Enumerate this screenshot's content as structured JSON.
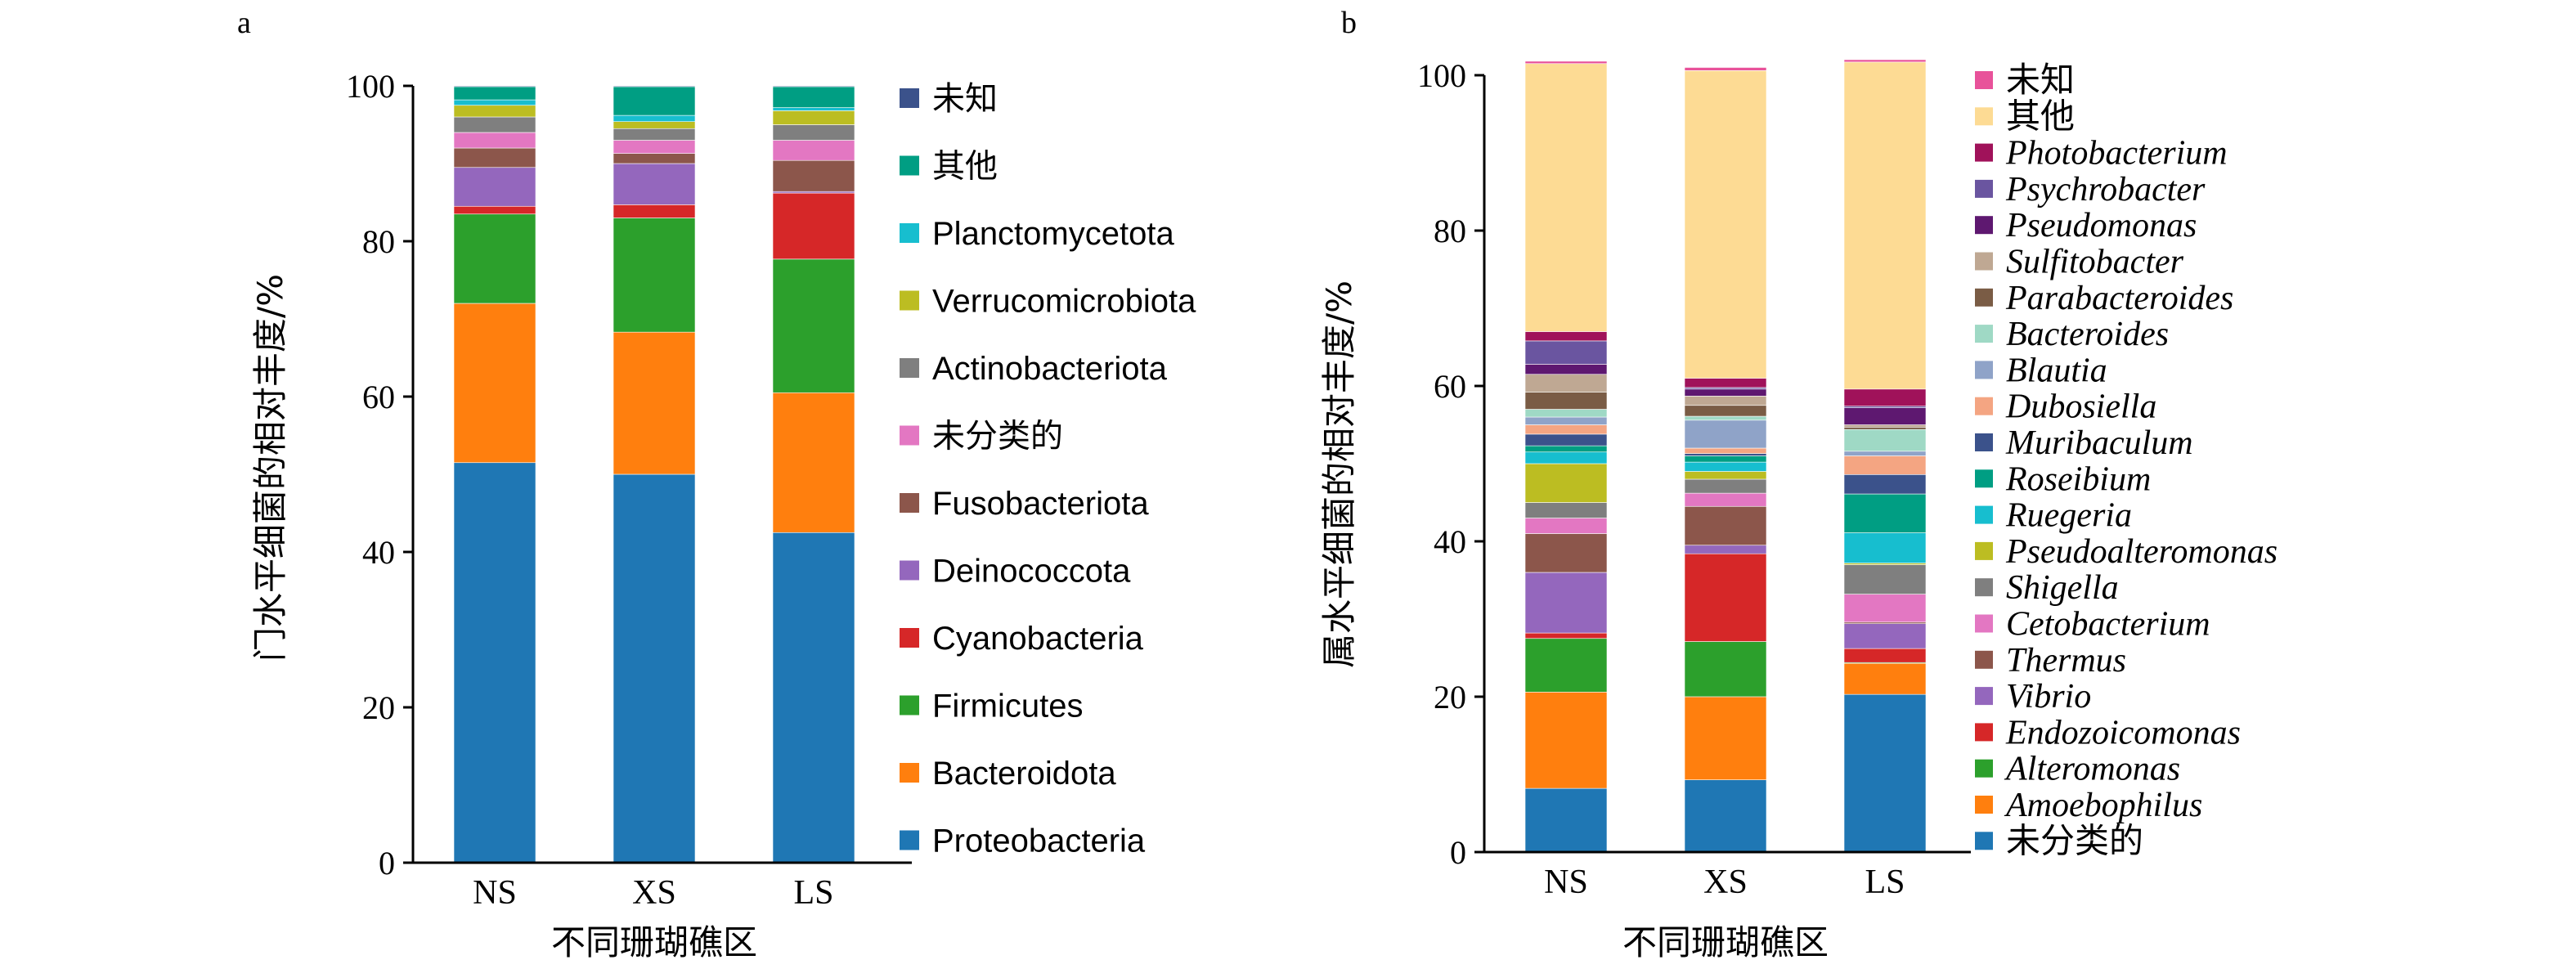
{
  "chart_data": [
    {
      "type": "bar",
      "panel": "a",
      "stacked": true,
      "categories": [
        "NS",
        "XS",
        "LS"
      ],
      "xlabel": "不同珊瑚礁区",
      "ylabel": "门水平细菌的相对丰度/%",
      "ylim": [
        0,
        100
      ],
      "yticks": [
        0,
        20,
        40,
        60,
        80,
        100
      ],
      "legend": "right",
      "series": [
        {
          "name": "Proteobacteria",
          "color": "#1f77b4",
          "values": [
            51.5,
            50.0,
            42.5
          ]
        },
        {
          "name": "Bacteroidota",
          "color": "#ff7f0e",
          "values": [
            20.5,
            18.3,
            18.0
          ]
        },
        {
          "name": "Firmicutes",
          "color": "#2ca02c",
          "values": [
            11.5,
            14.7,
            17.2
          ]
        },
        {
          "name": "Cyanobacteria",
          "color": "#d62728",
          "values": [
            1.0,
            1.7,
            8.5
          ]
        },
        {
          "name": "Deinococcota",
          "color": "#9467bd",
          "values": [
            5.0,
            5.3,
            0.2
          ]
        },
        {
          "name": "Fusobacteriota",
          "color": "#8c564b",
          "values": [
            2.5,
            1.3,
            4.0
          ]
        },
        {
          "name": "未分类的",
          "color": "#e377c2",
          "values": [
            2.0,
            1.7,
            2.6
          ]
        },
        {
          "name": "Actinobacteriota",
          "color": "#7f7f7f",
          "values": [
            2.0,
            1.5,
            2.0
          ]
        },
        {
          "name": "Verrucomicrobiota",
          "color": "#bcbd22",
          "values": [
            1.5,
            0.9,
            1.8
          ]
        },
        {
          "name": "Planctomycetota",
          "color": "#17becf",
          "values": [
            0.7,
            0.8,
            0.4
          ]
        },
        {
          "name": "其他",
          "color": "#009e83",
          "values": [
            1.7,
            3.7,
            2.7
          ]
        },
        {
          "name": "未知",
          "color": "#3b528b",
          "values": [
            0.1,
            0.1,
            0.1
          ]
        }
      ]
    },
    {
      "type": "bar",
      "panel": "b",
      "stacked": true,
      "categories": [
        "NS",
        "XS",
        "LS"
      ],
      "xlabel": "不同珊瑚礁区",
      "ylabel": "属水平细菌的相对丰度/%",
      "ylim": [
        0,
        100
      ],
      "yticks": [
        0,
        20,
        40,
        60,
        80,
        100
      ],
      "legend": "right",
      "series": [
        {
          "name": "未分类的",
          "color": "#1f77b4",
          "values": [
            8.2,
            9.3,
            20.3
          ]
        },
        {
          "name": "Amoebophilus",
          "color": "#ff7f0e",
          "values": [
            12.4,
            10.7,
            4.0
          ]
        },
        {
          "name": "Alteromonas",
          "color": "#2ca02c",
          "values": [
            6.9,
            7.1,
            0.1
          ]
        },
        {
          "name": "Endozoicomonas",
          "color": "#d62728",
          "values": [
            0.7,
            11.3,
            1.8
          ]
        },
        {
          "name": "Vibrio",
          "color": "#9467bd",
          "values": [
            7.8,
            1.1,
            3.2
          ]
        },
        {
          "name": "Thermus",
          "color": "#8c564b",
          "values": [
            5.0,
            5.0,
            0.2
          ]
        },
        {
          "name": "Cetobacterium",
          "color": "#e377c2",
          "values": [
            2.0,
            1.7,
            3.6
          ]
        },
        {
          "name": "Shigella",
          "color": "#7f7f7f",
          "values": [
            2.0,
            1.8,
            3.8
          ]
        },
        {
          "name": "Pseudoalteromonas",
          "color": "#bcbd22",
          "values": [
            5.0,
            1.0,
            0.2
          ]
        },
        {
          "name": "Ruegeria",
          "color": "#17becf",
          "values": [
            1.5,
            1.2,
            3.9
          ]
        },
        {
          "name": "Roseibium",
          "color": "#009e83",
          "values": [
            0.8,
            0.8,
            5.0
          ]
        },
        {
          "name": "Muribaculum",
          "color": "#3b528b",
          "values": [
            1.5,
            0.3,
            2.5
          ]
        },
        {
          "name": "Dubosiella",
          "color": "#f4a582",
          "values": [
            1.2,
            0.7,
            2.4
          ]
        },
        {
          "name": "Blautia",
          "color": "#8fa3c8",
          "values": [
            1.0,
            3.6,
            0.6
          ]
        },
        {
          "name": "Bacteroides",
          "color": "#9fd9c5",
          "values": [
            1.0,
            0.5,
            2.8
          ]
        },
        {
          "name": "Parabacteroides",
          "color": "#7a5c45",
          "values": [
            2.2,
            1.4,
            0.3
          ]
        },
        {
          "name": "Sulfitobacter",
          "color": "#bfa893",
          "values": [
            2.3,
            1.2,
            0.3
          ]
        },
        {
          "name": "Pseudomonas",
          "color": "#5e1870",
          "values": [
            1.3,
            0.9,
            2.2
          ]
        },
        {
          "name": "Psychrobacter",
          "color": "#6a55a0",
          "values": [
            3.0,
            0.2,
            0.2
          ]
        },
        {
          "name": "Photobacterium",
          "color": "#a0125a",
          "values": [
            1.2,
            1.2,
            2.2
          ]
        },
        {
          "name": "其他",
          "color": "#fddb94",
          "values": [
            34.5,
            39.6,
            42.1
          ]
        },
        {
          "name": "未知",
          "color": "#e8529a",
          "values": [
            0.3,
            0.4,
            0.3
          ]
        }
      ]
    }
  ],
  "panels": {
    "a": {
      "label": "a"
    },
    "b": {
      "label": "b"
    }
  }
}
